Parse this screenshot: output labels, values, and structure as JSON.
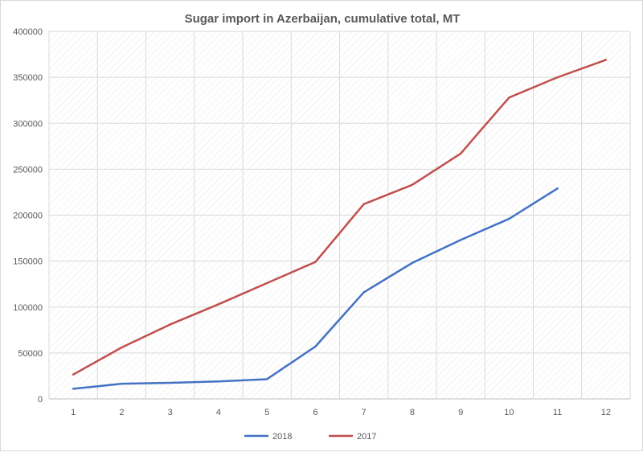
{
  "chart_data": {
    "type": "line",
    "title": "Sugar import in Azerbaijan, cumulative total, MT",
    "xlabel": "",
    "ylabel": "",
    "x": [
      1,
      2,
      3,
      4,
      5,
      6,
      7,
      8,
      9,
      10,
      11,
      12
    ],
    "ylim": [
      0,
      400000
    ],
    "yticks": [
      0,
      50000,
      100000,
      150000,
      200000,
      250000,
      300000,
      350000,
      400000
    ],
    "grid": true,
    "legend_position": "bottom",
    "series": [
      {
        "name": "2018",
        "color": "#4472c4",
        "values": [
          11000,
          16500,
          17500,
          19000,
          21500,
          57000,
          116000,
          148000,
          173000,
          196000,
          229000,
          null
        ]
      },
      {
        "name": "2017",
        "color": "#c0504d",
        "values": [
          26500,
          56000,
          81000,
          103000,
          126000,
          149000,
          212000,
          233000,
          267000,
          328000,
          350000,
          369000
        ]
      }
    ]
  }
}
